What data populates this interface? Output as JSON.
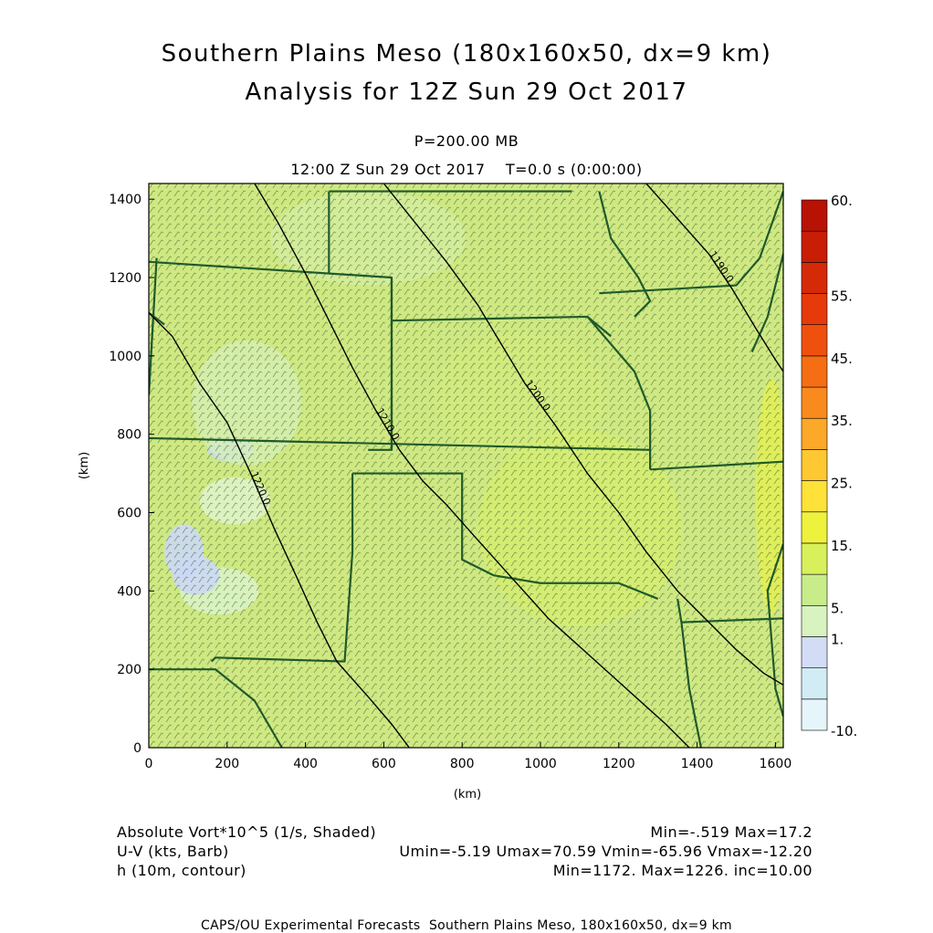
{
  "header": {
    "title_line1": "Southern Plains Meso (180x160x50, dx=9 km)",
    "title_line2": "Analysis for 12Z Sun 29 Oct 2017",
    "level": "P=200.00 MB",
    "time": "12:00 Z Sun 29 Oct 2017    T=0.0 s (0:00:00)"
  },
  "legend_lines": {
    "vort_label": "Absolute Vort*10^5 (1/s, Shaded)",
    "vort_stats": "Min=-.519 Max=17.2",
    "wind_label": "U-V (kts, Barb)",
    "wind_stats": "Umin=-5.19 Umax=70.59 Vmin=-65.96 Vmax=-12.20",
    "height_label": "h (10m, contour)",
    "height_stats": "Min=1172. Max=1226. inc=10.00"
  },
  "footer": "CAPS/OU Experimental Forecasts  Southern Plains Meso, 180x160x50, dx=9 km",
  "colors": {
    "map_lines": "#1f5a2a",
    "contour": "#000000",
    "background_field": "#cfe882"
  },
  "chart_data": {
    "type": "heatmap",
    "xlabel": "(km)",
    "ylabel": "(km)",
    "xlim": [
      0,
      1620
    ],
    "ylim": [
      0,
      1440
    ],
    "xticks": [
      "0",
      "200",
      "400",
      "600",
      "800",
      "1000",
      "1200",
      "1400",
      "1600"
    ],
    "yticks": [
      "0",
      "200",
      "400",
      "600",
      "800",
      "1000",
      "1200",
      "1400"
    ],
    "colorbar": {
      "labels": [
        "-10.",
        "1.",
        "5.",
        "15.",
        "25.",
        "35.",
        "45.",
        "55.",
        "60."
      ],
      "colors": [
        "#e6f5fa",
        "#d2ecf5",
        "#d2dcf5",
        "#d8f2c0",
        "#c8ec8a",
        "#d8f05a",
        "#eef23c",
        "#fee23a",
        "#fec832",
        "#fca828",
        "#f98a1e",
        "#f56e14",
        "#f0500e",
        "#e63a0a",
        "#d52a08",
        "#c81e06",
        "#b81204"
      ]
    },
    "contours": [
      {
        "label": "1220.0",
        "points": [
          [
            0,
            1110
          ],
          [
            60,
            1050
          ],
          [
            130,
            930
          ],
          [
            200,
            830
          ],
          [
            260,
            700
          ],
          [
            320,
            560
          ],
          [
            380,
            430
          ],
          [
            430,
            320
          ],
          [
            480,
            220
          ],
          [
            560,
            130
          ],
          [
            620,
            60
          ],
          [
            665,
            0
          ]
        ]
      },
      {
        "label": "1210.0",
        "points": [
          [
            270,
            1440
          ],
          [
            330,
            1340
          ],
          [
            400,
            1210
          ],
          [
            460,
            1090
          ],
          [
            520,
            970
          ],
          [
            580,
            860
          ],
          [
            640,
            760
          ],
          [
            700,
            680
          ],
          [
            760,
            620
          ],
          [
            840,
            530
          ],
          [
            930,
            430
          ],
          [
            1020,
            330
          ],
          [
            1120,
            240
          ],
          [
            1220,
            150
          ],
          [
            1320,
            60
          ],
          [
            1380,
            0
          ]
        ]
      },
      {
        "label": "1200.0",
        "points": [
          [
            600,
            1440
          ],
          [
            680,
            1340
          ],
          [
            760,
            1240
          ],
          [
            840,
            1130
          ],
          [
            900,
            1030
          ],
          [
            960,
            930
          ],
          [
            1040,
            820
          ],
          [
            1120,
            700
          ],
          [
            1200,
            600
          ],
          [
            1270,
            500
          ],
          [
            1350,
            400
          ],
          [
            1430,
            320
          ],
          [
            1500,
            250
          ],
          [
            1570,
            190
          ],
          [
            1620,
            160
          ]
        ]
      },
      {
        "label": "1190.0",
        "points": [
          [
            1270,
            1440
          ],
          [
            1350,
            1350
          ],
          [
            1430,
            1260
          ],
          [
            1490,
            1170
          ],
          [
            1550,
            1070
          ],
          [
            1600,
            990
          ],
          [
            1620,
            960
          ]
        ]
      }
    ],
    "colorbar_class_notes": "shaded field mostly in 5.-15. range"
  }
}
